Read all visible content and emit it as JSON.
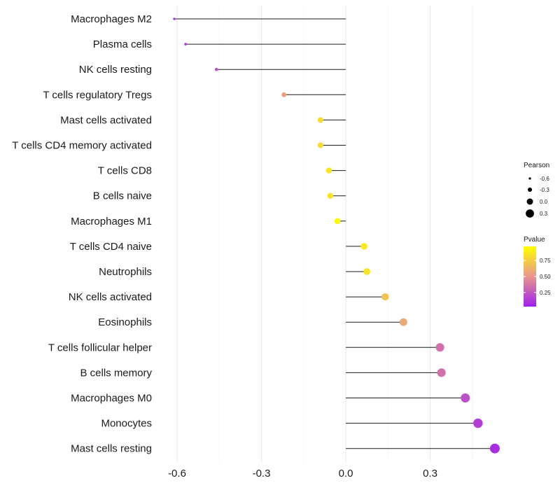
{
  "chart_data": {
    "type": "lollipop",
    "title": "",
    "xlabel": "",
    "ylabel": "",
    "xlim": [
      -0.64,
      0.66
    ],
    "x_ticks": [
      -0.6,
      -0.3,
      0.0,
      0.3
    ],
    "x_tick_labels": [
      "-0.6",
      "-0.3",
      "0.0",
      "0.3"
    ],
    "baseline": 0,
    "grid": true,
    "legend_position": "right",
    "categories": [
      "Macrophages M2",
      "Plasma cells",
      "NK cells resting",
      "T cells regulatory  Tregs",
      "Mast cells activated",
      "T cells CD4 memory activated",
      "T cells CD8",
      "B cells naive",
      "Macrophages M1",
      "T cells CD4 naive",
      "Neutrophils",
      "NK cells activated",
      "Eosinophils",
      "T cells follicular helper",
      "B cells memory",
      "Macrophages M0",
      "Monocytes",
      "Mast cells resting"
    ],
    "series": [
      {
        "name": "Pearson",
        "values": [
          -0.61,
          -0.57,
          -0.46,
          -0.22,
          -0.09,
          -0.09,
          -0.06,
          -0.055,
          -0.03,
          0.065,
          0.075,
          0.14,
          0.205,
          0.335,
          0.34,
          0.425,
          0.47,
          0.53
        ]
      },
      {
        "name": "Pvalue",
        "values": [
          0.05,
          0.1,
          0.2,
          0.55,
          0.8,
          0.8,
          0.85,
          0.85,
          0.95,
          0.88,
          0.85,
          0.7,
          0.58,
          0.35,
          0.35,
          0.22,
          0.15,
          0.08
        ]
      }
    ],
    "size_legend": {
      "title": "Pearson",
      "labels": [
        "-0.6",
        "-0.3",
        "0.0",
        "0.3"
      ],
      "values": [
        -0.6,
        -0.3,
        0.0,
        0.3
      ]
    },
    "color_legend": {
      "title": "Pvalue",
      "labels": [
        "0.75",
        "0.50",
        "0.25"
      ],
      "values": [
        0.75,
        0.5,
        0.25
      ],
      "range": [
        0.03,
        0.97
      ],
      "low_color": "#a020f0",
      "high_color": "#ffff00"
    }
  }
}
